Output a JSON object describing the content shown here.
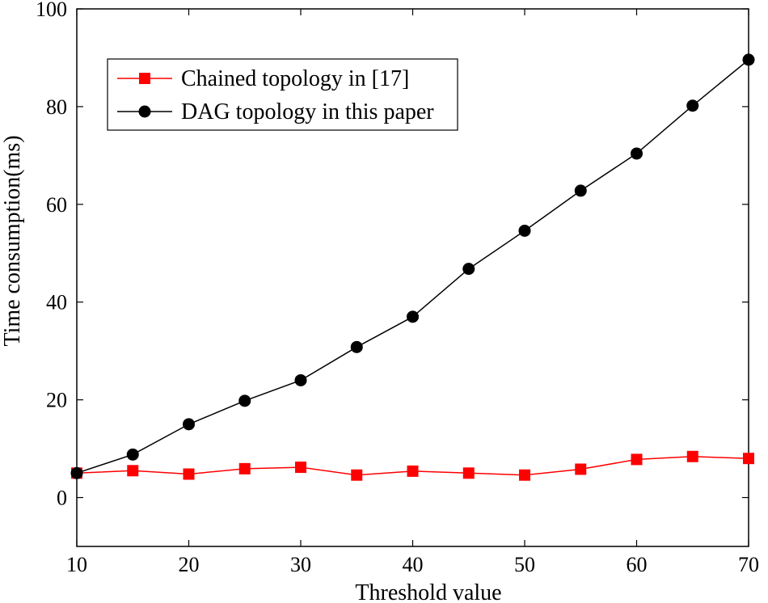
{
  "chart_data": {
    "type": "line",
    "title": "",
    "xlabel": "Threshold value",
    "ylabel": "Time consumption(ms)",
    "xlim": [
      10,
      70
    ],
    "ylim": [
      -10,
      100
    ],
    "xticks": [
      10,
      20,
      30,
      40,
      50,
      60,
      70
    ],
    "yticks": [
      0,
      20,
      40,
      60,
      80,
      100
    ],
    "grid": false,
    "legend_position": "top-left",
    "x": [
      10,
      15,
      20,
      25,
      30,
      35,
      40,
      45,
      50,
      55,
      60,
      65,
      70
    ],
    "series": [
      {
        "name": "Chained topology in [17]",
        "color": "#ff0000",
        "marker": "square",
        "values": [
          5.0,
          5.5,
          4.8,
          5.9,
          6.2,
          4.6,
          5.4,
          5.0,
          4.6,
          5.8,
          7.8,
          8.4,
          8.0
        ]
      },
      {
        "name": "DAG topology in this paper",
        "color": "#000000",
        "marker": "circle",
        "values": [
          5.0,
          8.8,
          15.0,
          19.8,
          24.0,
          30.8,
          37.0,
          46.8,
          54.6,
          62.8,
          70.4,
          80.2,
          89.6
        ]
      }
    ]
  }
}
